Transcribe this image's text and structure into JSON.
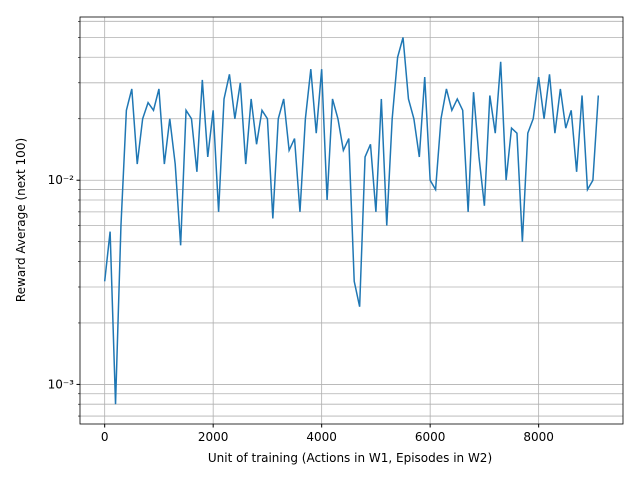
{
  "chart_data": {
    "type": "line",
    "xlabel": "Unit of training (Actions in W1, Episodes in W2)",
    "ylabel": "Reward Average (next 100)",
    "x": [
      0,
      100,
      200,
      300,
      400,
      500,
      600,
      700,
      800,
      900,
      1000,
      1100,
      1200,
      1300,
      1400,
      1500,
      1600,
      1700,
      1800,
      1900,
      2000,
      2100,
      2200,
      2300,
      2400,
      2500,
      2600,
      2700,
      2800,
      2900,
      3000,
      3100,
      3200,
      3300,
      3400,
      3500,
      3600,
      3700,
      3800,
      3900,
      4000,
      4100,
      4200,
      4300,
      4400,
      4500,
      4600,
      4700,
      4800,
      4900,
      5000,
      5100,
      5200,
      5300,
      5400,
      5500,
      5600,
      5700,
      5800,
      5900,
      6000,
      6100,
      6200,
      6300,
      6400,
      6500,
      6600,
      6700,
      6800,
      6900,
      7000,
      7100,
      7200,
      7300,
      7400,
      7500,
      7600,
      7700,
      7800,
      7900,
      8000,
      8100,
      8200,
      8300,
      8400,
      8500,
      8600,
      8700,
      8800,
      8900,
      9000,
      9100
    ],
    "series": [
      {
        "color": "#1f77b4",
        "values": [
          0.0032,
          0.0056,
          0.0008,
          0.006,
          0.022,
          0.028,
          0.012,
          0.02,
          0.024,
          0.022,
          0.028,
          0.012,
          0.02,
          0.012,
          0.0048,
          0.022,
          0.02,
          0.011,
          0.031,
          0.013,
          0.022,
          0.007,
          0.025,
          0.033,
          0.02,
          0.03,
          0.012,
          0.025,
          0.015,
          0.022,
          0.02,
          0.0065,
          0.02,
          0.025,
          0.014,
          0.016,
          0.007,
          0.02,
          0.035,
          0.017,
          0.035,
          0.008,
          0.025,
          0.02,
          0.014,
          0.016,
          0.0032,
          0.0024,
          0.013,
          0.015,
          0.007,
          0.025,
          0.006,
          0.02,
          0.04,
          0.05,
          0.025,
          0.02,
          0.013,
          0.032,
          0.01,
          0.009,
          0.02,
          0.028,
          0.022,
          0.025,
          0.022,
          0.007,
          0.027,
          0.013,
          0.0075,
          0.026,
          0.017,
          0.038,
          0.01,
          0.018,
          0.017,
          0.005,
          0.017,
          0.02,
          0.032,
          0.02,
          0.033,
          0.017,
          0.028,
          0.018,
          0.022,
          0.011,
          0.026,
          0.009,
          0.01,
          0.026
        ]
      }
    ],
    "xlim": [
      -455,
      9555
    ],
    "xticks": [
      0,
      2000,
      4000,
      6000,
      8000
    ],
    "ylim": [
      0.00064,
      0.063
    ],
    "log_y": true,
    "yticks": [
      {
        "value": 0.001,
        "label": "10⁻³"
      },
      {
        "value": 0.01,
        "label": "10⁻²"
      }
    ],
    "minor_yticks": [
      0.0007,
      0.0008,
      0.0009,
      0.002,
      0.003,
      0.004,
      0.005,
      0.006,
      0.007,
      0.008,
      0.009,
      0.02,
      0.03,
      0.04,
      0.05,
      0.06
    ],
    "grid": true
  }
}
